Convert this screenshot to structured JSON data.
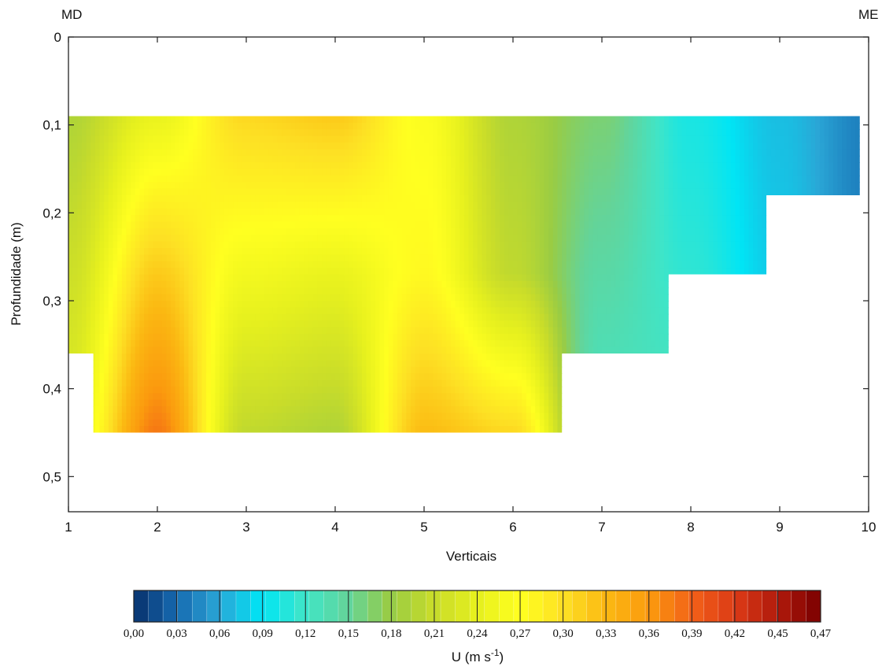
{
  "chart_data": {
    "type": "heatmap",
    "subtype": "contour",
    "title": "",
    "xlabel": "Verticais",
    "ylabel": "Profundidade (m)",
    "xlim": [
      1,
      10
    ],
    "ylim": [
      0,
      0.54
    ],
    "y_inverted": true,
    "xticks": [
      "1",
      "2",
      "3",
      "4",
      "5",
      "6",
      "7",
      "8",
      "9",
      "10"
    ],
    "yticks": [
      "0",
      "0,1",
      "0,2",
      "0,3",
      "0,4",
      "0,5"
    ],
    "left_bank_label": "MD",
    "right_bank_label": "ME",
    "colorbar": {
      "label_prefix": "U (m s",
      "label_exponent": "-1",
      "label_suffix": ")",
      "min": 0,
      "max": 0.47,
      "ticks": [
        "0,00",
        "0,03",
        "0,06",
        "0,09",
        "0,12",
        "0,15",
        "0,18",
        "0,21",
        "0,24",
        "0,27",
        "0,30",
        "0,33",
        "0,36",
        "0,39",
        "0,42",
        "0,45",
        "0,47"
      ],
      "colors": [
        "#08306b",
        "#1669b0",
        "#2aa6d6",
        "#00e5f5",
        "#3fe5c8",
        "#63d49a",
        "#99cc44",
        "#c8dc2a",
        "#e6f01e",
        "#ffff20",
        "#fde024",
        "#fbb812",
        "#fb9a0e",
        "#f26018",
        "#db3a16",
        "#b01a0c",
        "#7a0000"
      ]
    },
    "surface_depth_m": 0.09,
    "bed_depth_m": [
      {
        "x_from": 1.0,
        "x_to": 1.28,
        "depth": 0.36
      },
      {
        "x_from": 1.28,
        "x_to": 6.55,
        "depth": 0.45
      },
      {
        "x_from": 6.55,
        "x_to": 7.75,
        "depth": 0.36
      },
      {
        "x_from": 7.75,
        "x_to": 8.85,
        "depth": 0.27
      },
      {
        "x_from": 8.85,
        "x_to": 9.9,
        "depth": 0.18
      }
    ],
    "verticals": [
      {
        "x": 1,
        "velocities": [
          0.19,
          0.21,
          0.23
        ]
      },
      {
        "x": 2,
        "velocities": [
          0.24,
          0.31,
          0.37
        ]
      },
      {
        "x": 3,
        "velocities": [
          0.3,
          0.25,
          0.2
        ]
      },
      {
        "x": 4,
        "velocities": [
          0.31,
          0.24,
          0.19
        ]
      },
      {
        "x": 5,
        "velocities": [
          0.26,
          0.27,
          0.32
        ]
      },
      {
        "x": 6,
        "velocities": [
          0.19,
          0.2,
          0.3
        ]
      },
      {
        "x": 7,
        "velocities": [
          0.16,
          0.14,
          0.12
        ]
      },
      {
        "x": 8,
        "velocities": [
          0.1,
          0.11,
          0.13
        ]
      },
      {
        "x": 9,
        "velocities": [
          0.07,
          0.08
        ]
      },
      {
        "x": 10,
        "velocities": [
          0.04,
          0.04
        ]
      }
    ]
  }
}
